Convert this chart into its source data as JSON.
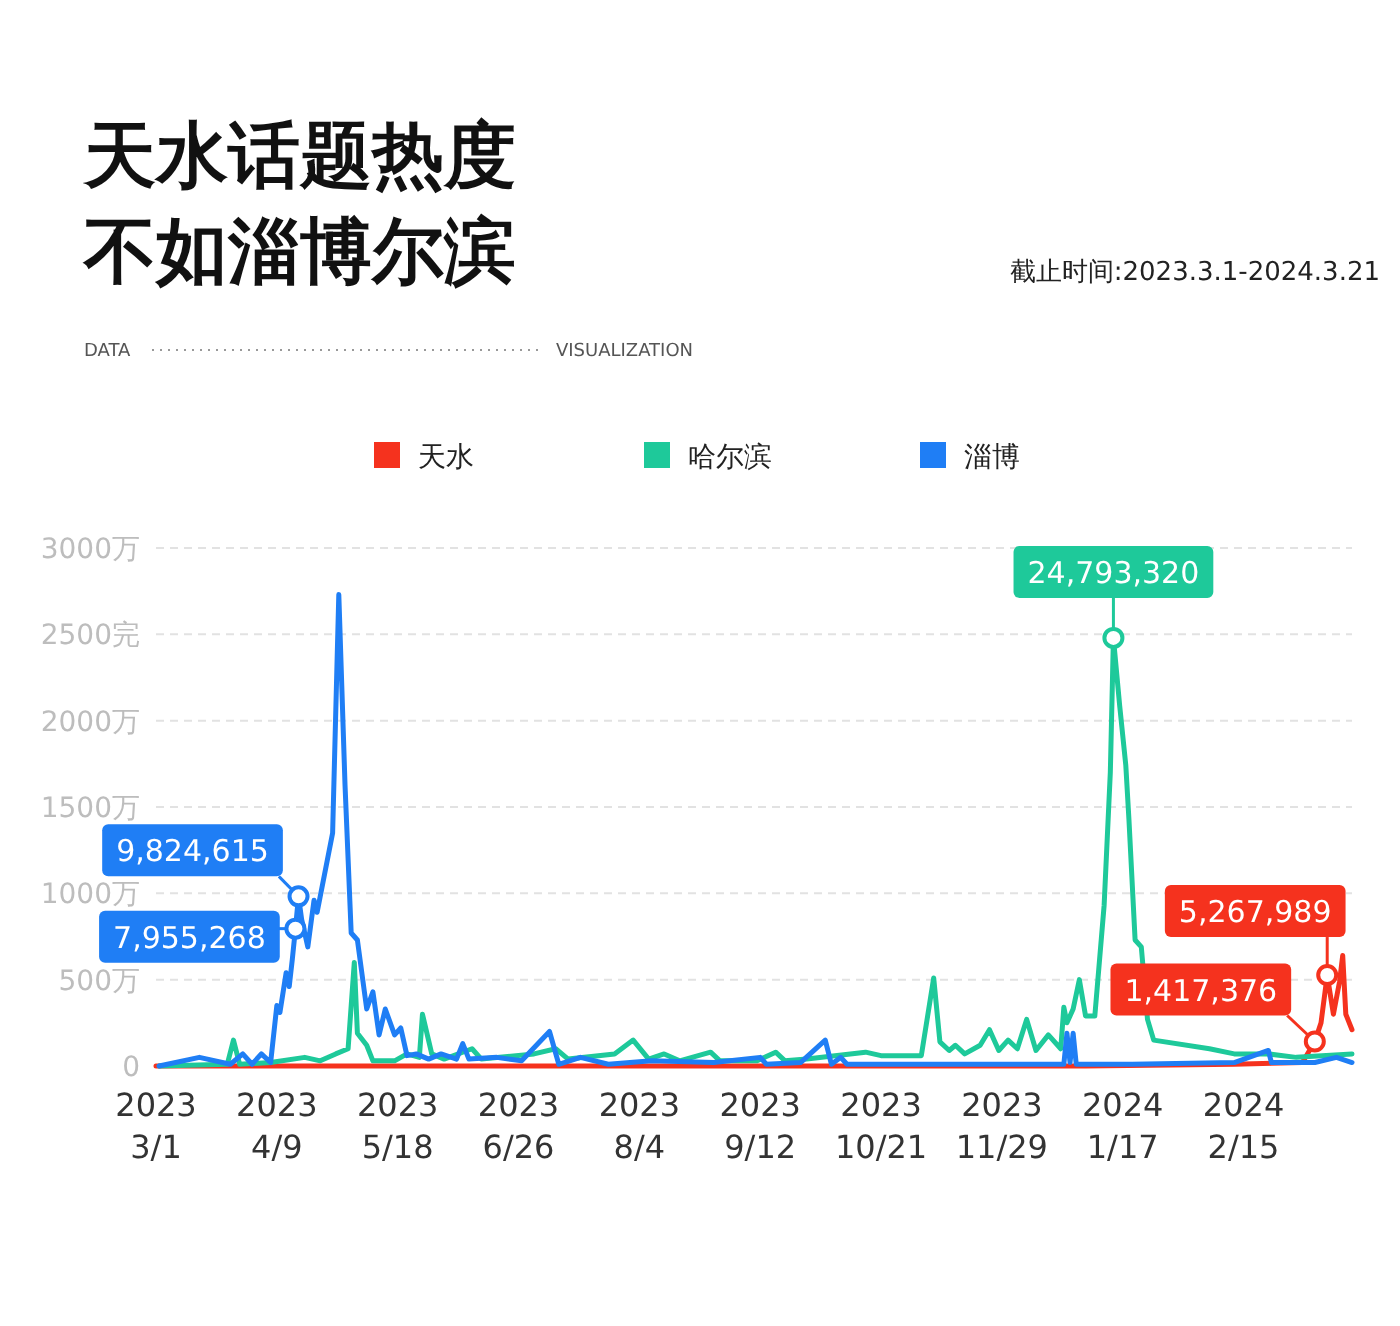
{
  "chart_data": {
    "type": "line",
    "title": "天水话题热度不如淄博尔滨",
    "annotations": [
      "DATA",
      "VISUALIZATION",
      "截止时间:2023.3.1-2024.3.21",
      {
        "text": "9,824,615",
        "x": "2023-04-16",
        "y": 982.4615
      },
      {
        "text": "7,955,268",
        "x": "2023-04-15",
        "y": 795.5268
      },
      {
        "text": "24,793,320",
        "x": "2024-01-04",
        "y": 2479.332
      },
      {
        "text": "5,267,989",
        "x": "2024-03-13",
        "y": 526.7989
      },
      {
        "text": "1,417,376",
        "x": "2024-03-09",
        "y": 141.7376
      }
    ],
    "legend": "top",
    "grid": "y",
    "xlim": [
      "2023-03-01",
      "2024-03-21"
    ],
    "xticks": [
      {
        "value": "2023-03-01",
        "label": "2023\n3/1"
      },
      {
        "value": "2023-04-09",
        "label": "2023\n4/9"
      },
      {
        "value": "2023-05-18",
        "label": "2023\n5/18"
      },
      {
        "value": "2023-06-26",
        "label": "2023\n6/26"
      },
      {
        "value": "2023-08-04",
        "label": "2023\n8/4"
      },
      {
        "value": "2023-09-12",
        "label": "2023\n9/12"
      },
      {
        "value": "2023-10-21",
        "label": "2023\n10/21"
      },
      {
        "value": "2023-11-29",
        "label": "2023\n11/29"
      },
      {
        "value": "2024-01-07",
        "label": "2024\n1/17"
      },
      {
        "value": "2024-02-15",
        "label": "2024\n2/15"
      }
    ],
    "ylim": [
      0,
      3000
    ],
    "yticks": [
      0,
      {
        "value": 500,
        "label": "500万"
      },
      {
        "value": 1000,
        "label": "1000万"
      },
      {
        "value": 1500,
        "label": "1500万"
      },
      {
        "value": 2000,
        "label": "2000万"
      },
      {
        "value": 2500,
        "label": "2500完"
      },
      {
        "value": 3000,
        "label": "3000万"
      }
    ],
    "series": [
      {
        "name": "天水",
        "color": "#f5321e",
        "x": [
          "2023-03-01",
          "2023-12-26",
          "2024-02-12",
          "2024-03-05",
          "2024-03-09",
          "2024-03-11",
          "2024-03-13",
          "2024-03-15",
          "2024-03-17",
          "2024-03-18",
          "2024-03-19",
          "2024-03-21"
        ],
        "values": [
          0,
          0,
          10,
          20,
          141.7376,
          250,
          526.7989,
          300,
          490,
          640,
          300,
          210
        ]
      },
      {
        "name": "哈尔滨",
        "color": "#1ec99a",
        "x": [
          "2023-03-02",
          "2023-03-24",
          "2023-03-26",
          "2023-03-28",
          "2023-04-07",
          "2023-04-18",
          "2023-04-23",
          "2023-04-28",
          "2023-05-02",
          "2023-05-04",
          "2023-05-05",
          "2023-05-08",
          "2023-05-10",
          "2023-05-17",
          "2023-05-21",
          "2023-05-25",
          "2023-05-26",
          "2023-05-29",
          "2023-06-02",
          "2023-06-11",
          "2023-06-14",
          "2023-07-01",
          "2023-07-08",
          "2023-07-12",
          "2023-07-27",
          "2023-08-02",
          "2023-08-07",
          "2023-08-12",
          "2023-08-17",
          "2023-08-27",
          "2023-08-30",
          "2023-09-11",
          "2023-09-17",
          "2023-09-20",
          "2023-09-27",
          "2023-10-16",
          "2023-10-21",
          "2023-11-03",
          "2023-11-07",
          "2023-11-09",
          "2023-11-12",
          "2023-11-14",
          "2023-11-17",
          "2023-11-22",
          "2023-11-25",
          "2023-11-28",
          "2023-12-01",
          "2023-12-04",
          "2023-12-07",
          "2023-12-10",
          "2023-12-14",
          "2023-12-18",
          "2023-12-19",
          "2023-12-20",
          "2023-12-22",
          "2023-12-24",
          "2023-12-26",
          "2023-12-29",
          "2024-01-01",
          "2024-01-03",
          "2024-01-04",
          "2024-01-06",
          "2024-01-08",
          "2024-01-09",
          "2024-01-11",
          "2024-01-13",
          "2024-01-15",
          "2024-01-17",
          "2024-02-04",
          "2024-02-12",
          "2024-02-23",
          "2024-03-03",
          "2024-03-21"
        ],
        "values": [
          0,
          10,
          150,
          10,
          20,
          50,
          30,
          70,
          100,
          600,
          190,
          120,
          30,
          30,
          70,
          50,
          300,
          70,
          40,
          100,
          40,
          70,
          100,
          40,
          70,
          150,
          40,
          70,
          30,
          80,
          30,
          30,
          80,
          30,
          40,
          80,
          60,
          60,
          510,
          140,
          90,
          120,
          70,
          120,
          210,
          90,
          150,
          100,
          270,
          90,
          180,
          100,
          340,
          250,
          330,
          500,
          290,
          290,
          930,
          1700,
          2479.332,
          2090,
          1740,
          1430,
          730,
          690,
          270,
          150,
          100,
          70,
          70,
          50,
          70
        ]
      },
      {
        "name": "淄博",
        "color": "#1f7ef5",
        "x": [
          "2023-03-02",
          "2023-03-15",
          "2023-03-25",
          "2023-03-29",
          "2023-04-01",
          "2023-04-04",
          "2023-04-07",
          "2023-04-09",
          "2023-04-10",
          "2023-04-12",
          "2023-04-13",
          "2023-04-14",
          "2023-04-15",
          "2023-04-16",
          "2023-04-17",
          "2023-04-19",
          "2023-04-21",
          "2023-04-22",
          "2023-04-27",
          "2023-04-29",
          "2023-05-01",
          "2023-05-03",
          "2023-05-05",
          "2023-05-08",
          "2023-05-10",
          "2023-05-12",
          "2023-05-14",
          "2023-05-17",
          "2023-05-19",
          "2023-05-21",
          "2023-05-24",
          "2023-05-28",
          "2023-06-01",
          "2023-06-06",
          "2023-06-08",
          "2023-06-10",
          "2023-06-19",
          "2023-06-27",
          "2023-07-06",
          "2023-07-09",
          "2023-07-16",
          "2023-07-25",
          "2023-08-08",
          "2023-08-28",
          "2023-09-12",
          "2023-09-14",
          "2023-09-25",
          "2023-10-03",
          "2023-10-05",
          "2023-10-08",
          "2023-10-10",
          "2023-11-21",
          "2023-12-19",
          "2023-12-20",
          "2023-12-21",
          "2023-12-22",
          "2023-12-23",
          "2024-01-10",
          "2024-02-12",
          "2024-02-23",
          "2024-02-24",
          "2024-03-09",
          "2024-03-16",
          "2024-03-21"
        ],
        "values": [
          0,
          50,
          10,
          70,
          10,
          70,
          20,
          350,
          310,
          540,
          460,
          620,
          795.5268,
          982.4615,
          850,
          690,
          960,
          890,
          1350,
          2730,
          1630,
          770,
          730,
          330,
          430,
          180,
          330,
          180,
          220,
          60,
          70,
          40,
          70,
          40,
          130,
          40,
          50,
          30,
          200,
          10,
          50,
          10,
          30,
          20,
          50,
          10,
          20,
          150,
          10,
          50,
          10,
          10,
          10,
          190,
          20,
          190,
          10,
          10,
          20,
          90,
          20,
          20,
          50,
          20
        ]
      }
    ]
  }
}
